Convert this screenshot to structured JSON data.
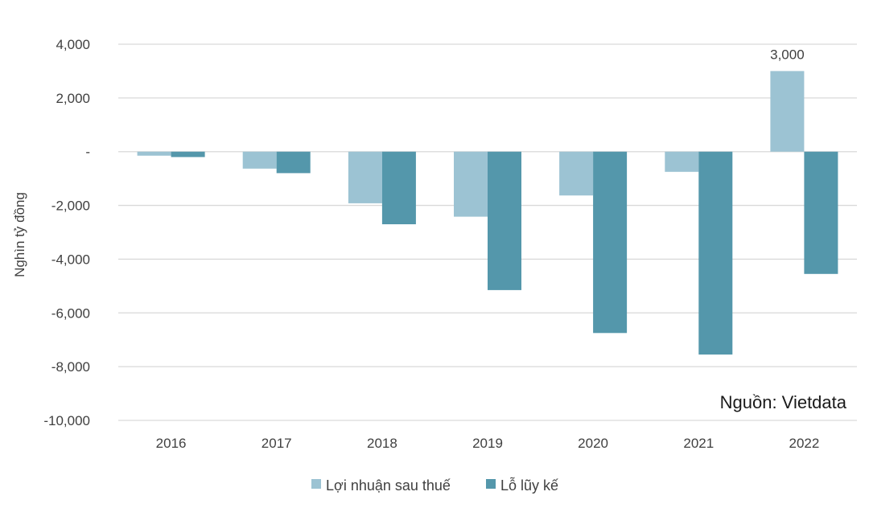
{
  "chart_data": {
    "type": "bar",
    "categories": [
      "2016",
      "2017",
      "2018",
      "2019",
      "2020",
      "2021",
      "2022"
    ],
    "series": [
      {
        "name": "Lợi nhuận sau thuế",
        "color": "#9cc3d3",
        "values": [
          -150,
          -630,
          -1920,
          -2420,
          -1630,
          -750,
          3000
        ]
      },
      {
        "name": "Lỗ lũy kế",
        "color": "#5497ab",
        "values": [
          -200,
          -800,
          -2700,
          -5150,
          -6750,
          -7550,
          -4550
        ]
      }
    ],
    "ylabel": "Nghìn tỷ đồng",
    "ylim": [
      -10000,
      4000
    ],
    "yticks": [
      4000,
      2000,
      0,
      -2000,
      -4000,
      -6000,
      -8000,
      -10000
    ],
    "ytick_labels": [
      "4,000",
      "2,000",
      "-",
      "-2,000",
      "-4,000",
      "-6,000",
      "-8,000",
      "-10,000"
    ],
    "data_labels": [
      {
        "series": 0,
        "index": 6,
        "text": "3,000"
      }
    ],
    "source": "Nguồn: Vietdata",
    "grid": true,
    "legend_position": "bottom"
  }
}
